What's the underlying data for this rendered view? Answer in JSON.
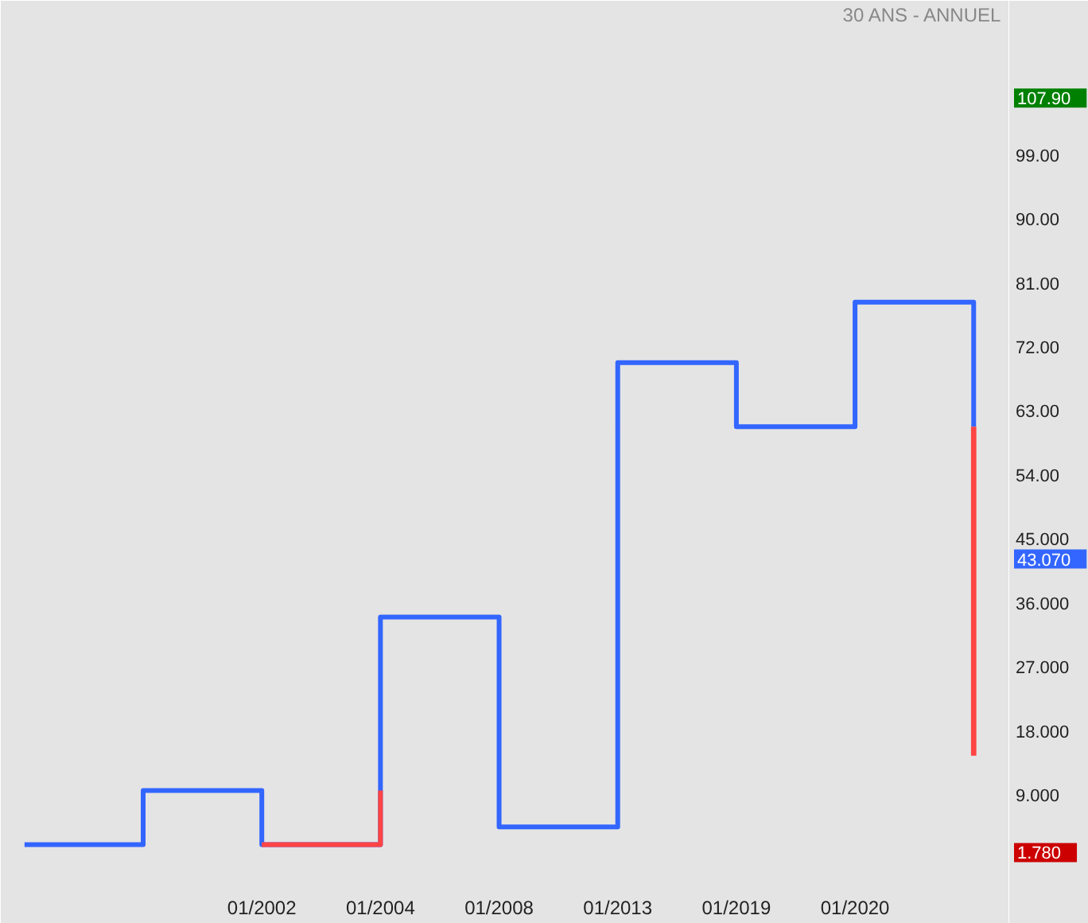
{
  "chart_data": {
    "type": "step",
    "title": "30 ANS - ANNUEL",
    "categories": [
      null,
      null,
      "01/2002",
      "01/2004",
      "01/2008",
      "01/2013",
      "01/2019",
      "01/2020",
      null
    ],
    "ylim": [
      -2.2,
      120.7
    ],
    "yticks": [
      {
        "value": 107.9,
        "label": "107.90"
      },
      {
        "value": 43.07,
        "label": "43.070"
      },
      {
        "value": 1.78,
        "label": "1.780"
      },
      {
        "value": 9,
        "label": "9.000"
      },
      {
        "value": 18,
        "label": "18.000"
      },
      {
        "value": 27,
        "label": "27.000"
      },
      {
        "value": 36,
        "label": "36.000"
      },
      {
        "value": 45,
        "label": "45.000"
      },
      {
        "value": 54,
        "label": "54.00"
      },
      {
        "value": 63,
        "label": "63.00"
      },
      {
        "value": 72,
        "label": "72.00"
      },
      {
        "value": 81,
        "label": "81.00"
      },
      {
        "value": 90,
        "label": "90.00"
      },
      {
        "value": 99,
        "label": "99.00"
      }
    ],
    "line_style": "solid",
    "series": [
      {
        "color": "#3366ff",
        "values": [
          2.0,
          9.6,
          2.0,
          34.0,
          4.5,
          69.8,
          60.8,
          78.3,
          60.8
        ]
      },
      {
        "color": "#ff4444",
        "values": [
          null,
          null,
          2.0,
          9.6,
          null,
          null,
          null,
          null,
          null
        ]
      },
      {
        "type": "bar",
        "color": "#ff4444",
        "base": [
          null,
          null,
          null,
          null,
          null,
          null,
          null,
          null,
          14.5
        ],
        "values": [
          null,
          null,
          null,
          null,
          null,
          null,
          null,
          null,
          46.3
        ]
      }
    ]
  }
}
